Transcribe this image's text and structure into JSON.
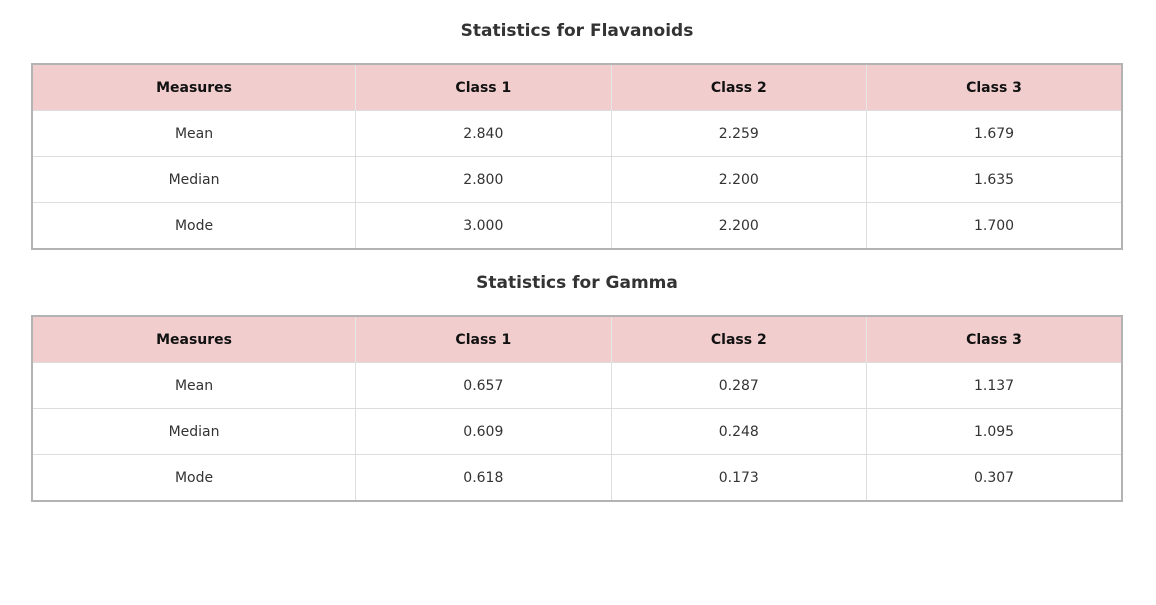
{
  "tables": [
    {
      "title": "Statistics for Flavanoids",
      "headers": [
        "Measures",
        "Class 1",
        "Class 2",
        "Class 3"
      ],
      "rows": [
        [
          "Mean",
          "2.840",
          "2.259",
          "1.679"
        ],
        [
          "Median",
          "2.800",
          "2.200",
          "1.635"
        ],
        [
          "Mode",
          "3.000",
          "2.200",
          "1.700"
        ]
      ]
    },
    {
      "title": "Statistics for Gamma",
      "headers": [
        "Measures",
        "Class 1",
        "Class 2",
        "Class 3"
      ],
      "rows": [
        [
          "Mean",
          "0.657",
          "0.287",
          "1.137"
        ],
        [
          "Median",
          "0.609",
          "0.248",
          "1.095"
        ],
        [
          "Mode",
          "0.618",
          "0.173",
          "0.307"
        ]
      ]
    }
  ],
  "colors": {
    "header_bg": "#f2cdce",
    "table_border": "#b3b3b3",
    "cell_border": "#dddddd"
  }
}
